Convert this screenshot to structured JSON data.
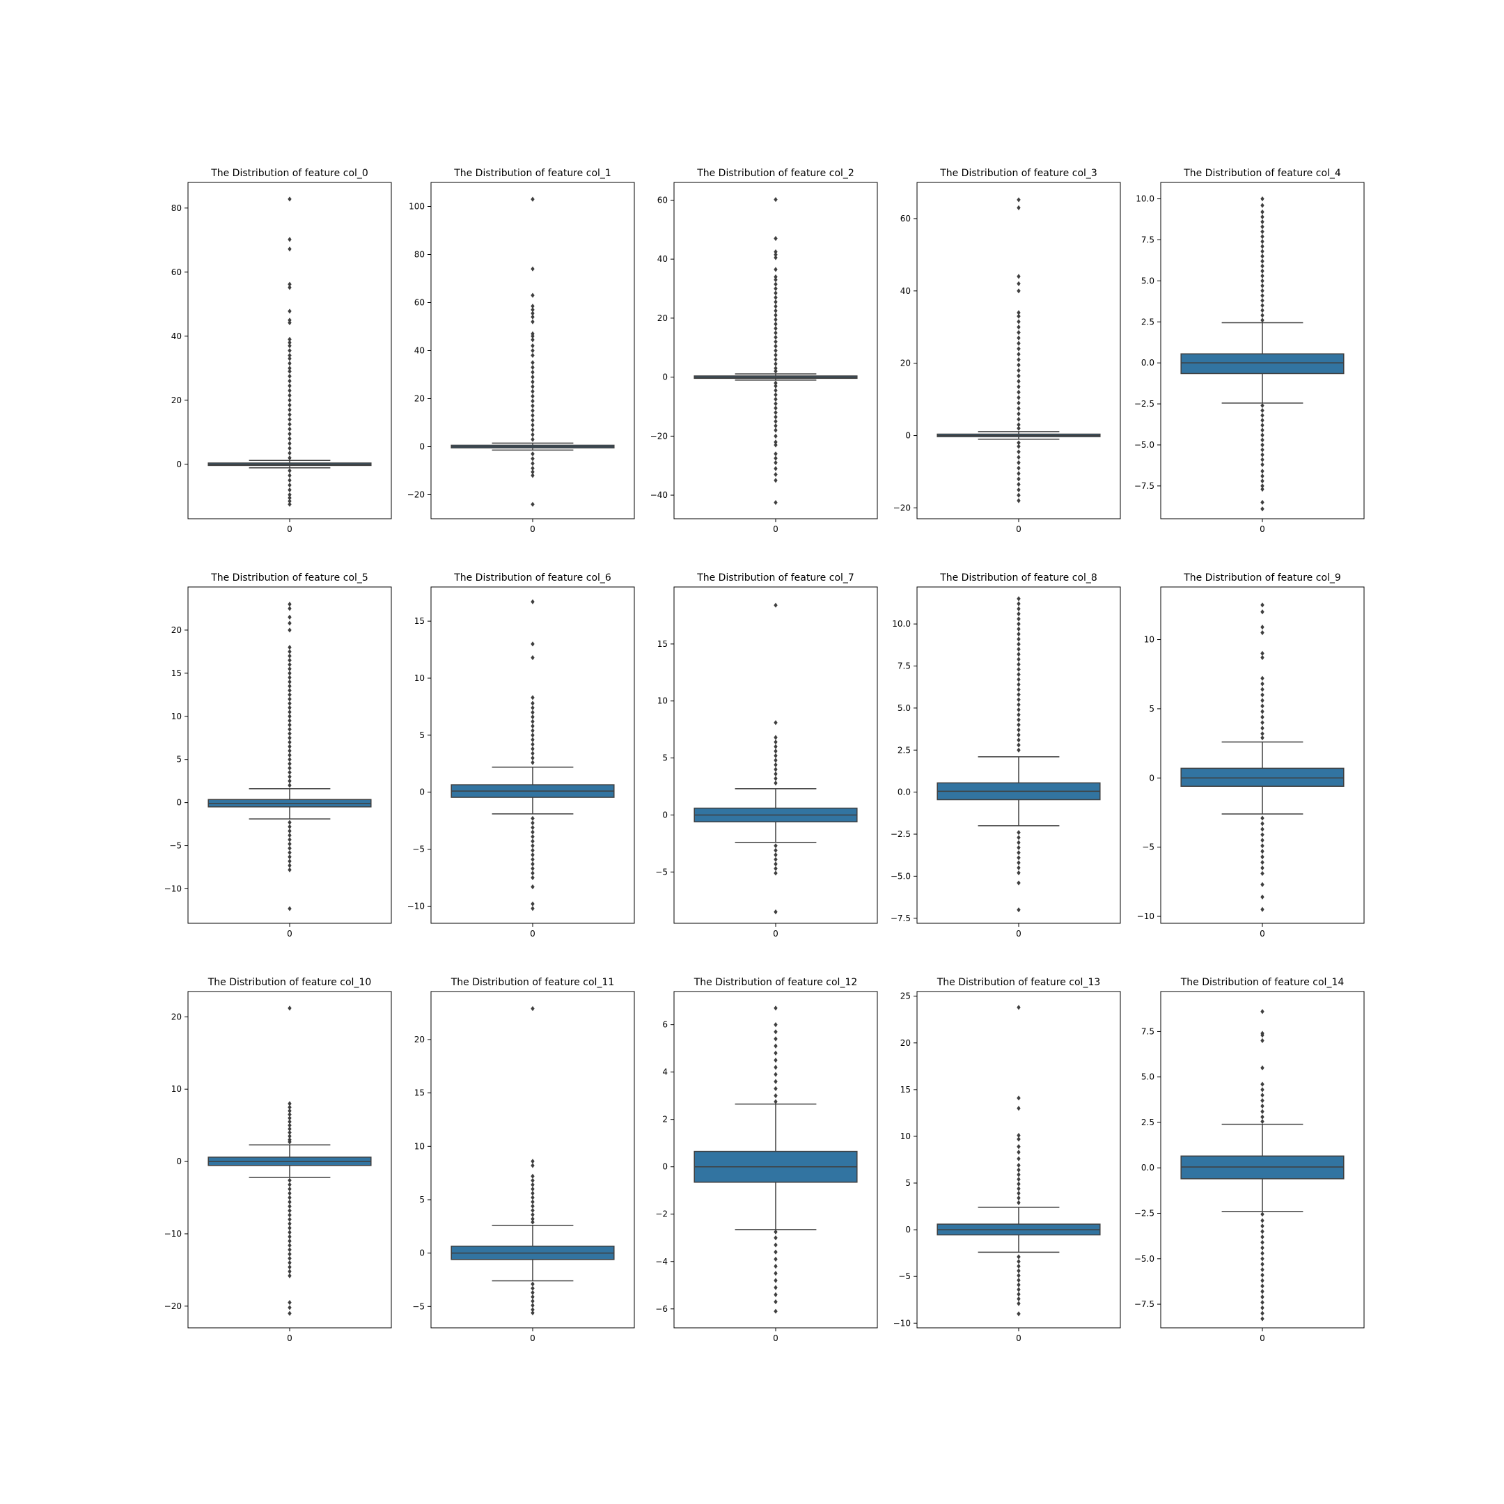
{
  "figure": {
    "background": "#ffffff"
  },
  "style": {
    "box_color": "#3274a1",
    "line_color": "#3f3f3f"
  },
  "chart_data": [
    {
      "type": "box",
      "title": "The Distribution of feature col_0",
      "x_ticks": [
        "0"
      ],
      "ylim": [
        -17,
        88
      ],
      "yticks": [
        0,
        20,
        40,
        60,
        80
      ],
      "box": {
        "q1": -0.35,
        "median": 0.0,
        "q3": 0.4,
        "whisker_low": -1.1,
        "whisker_high": 1.2
      },
      "outliers": [
        82.8,
        70.2,
        67.2,
        56.2,
        55.2,
        47.8,
        45.0,
        44.2,
        39.0,
        38.0,
        37.0,
        35.5,
        34.0,
        33.0,
        31.5,
        30.0,
        29.0,
        27.5,
        26.0,
        24.5,
        23.0,
        21.5,
        20.0,
        18.5,
        17.0,
        15.5,
        14.0,
        12.5,
        11.0,
        9.5,
        8.0,
        6.5,
        5.0,
        3.5,
        2.0,
        -2.0,
        -3.5,
        -5.0,
        -6.5,
        -8.0,
        -9.5,
        -10.5,
        -11.5,
        -12.5
      ]
    },
    {
      "type": "box",
      "title": "The Distribution of feature col_1",
      "x_ticks": [
        "0"
      ],
      "ylim": [
        -30,
        110
      ],
      "yticks": [
        -20,
        0,
        20,
        40,
        60,
        80,
        100
      ],
      "box": {
        "q1": -0.5,
        "median": 0.0,
        "q3": 0.6,
        "whisker_low": -1.4,
        "whisker_high": 1.5
      },
      "outliers": [
        103.0,
        74.0,
        63.0,
        58.5,
        57.0,
        55.5,
        54.0,
        52.0,
        47.0,
        46.0,
        44.5,
        42.0,
        40.0,
        38.0,
        35.0,
        33.0,
        31.0,
        29.0,
        27.0,
        25.0,
        23.0,
        21.0,
        19.0,
        17.0,
        15.0,
        13.0,
        11.0,
        9.0,
        7.0,
        5.0,
        3.0,
        -3.0,
        -5.0,
        -7.0,
        -9.0,
        -10.5,
        -12.0,
        -24.0
      ]
    },
    {
      "type": "box",
      "title": "The Distribution of feature col_2",
      "x_ticks": [
        "0"
      ],
      "ylim": [
        -48,
        66
      ],
      "yticks": [
        -40,
        -20,
        0,
        20,
        40,
        60
      ],
      "box": {
        "q1": -0.4,
        "median": 0.0,
        "q3": 0.4,
        "whisker_low": -1.0,
        "whisker_high": 1.1
      },
      "outliers": [
        60.2,
        47.0,
        42.5,
        41.5,
        40.5,
        36.5,
        34.0,
        33.0,
        31.5,
        30.0,
        28.5,
        27.0,
        25.5,
        24.0,
        22.5,
        21.0,
        19.5,
        18.0,
        16.5,
        15.0,
        13.5,
        12.0,
        10.5,
        9.0,
        7.5,
        6.0,
        4.5,
        3.0,
        2.0,
        -2.0,
        -3.0,
        -4.5,
        -6.0,
        -7.5,
        -9.0,
        -10.5,
        -12.0,
        -13.5,
        -15.0,
        -16.5,
        -18.0,
        -20.0,
        -22.0,
        -23.0,
        -26.0,
        -27.5,
        -29.0,
        -31.0,
        -33.0,
        -35.0,
        -42.5
      ]
    },
    {
      "type": "box",
      "title": "The Distribution of feature col_3",
      "x_ticks": [
        "0"
      ],
      "ylim": [
        -23,
        70
      ],
      "yticks": [
        -20,
        0,
        20,
        40,
        60
      ],
      "box": {
        "q1": -0.3,
        "median": 0.0,
        "q3": 0.4,
        "whisker_low": -1.0,
        "whisker_high": 1.1
      },
      "outliers": [
        65.2,
        63.0,
        44.0,
        42.0,
        40.0,
        34.0,
        33.0,
        31.5,
        30.0,
        28.5,
        27.0,
        25.5,
        24.0,
        22.5,
        21.0,
        19.5,
        18.0,
        16.5,
        15.0,
        13.5,
        12.0,
        10.5,
        9.0,
        7.5,
        6.0,
        4.5,
        3.0,
        2.0,
        -2.0,
        -3.0,
        -4.5,
        -6.0,
        -7.5,
        -9.0,
        -10.5,
        -12.0,
        -13.5,
        -15.0,
        -16.5,
        -18.0
      ]
    },
    {
      "type": "box",
      "title": "The Distribution of feature col_4",
      "x_ticks": [
        "0"
      ],
      "ylim": [
        -9.5,
        11.0
      ],
      "yticks": [
        -7.5,
        -5.0,
        -2.5,
        0.0,
        2.5,
        5.0,
        7.5,
        10.0
      ],
      "box": {
        "q1": -0.65,
        "median": 0.0,
        "q3": 0.55,
        "whisker_low": -2.45,
        "whisker_high": 2.45
      },
      "outliers": [
        10.0,
        9.6,
        9.2,
        8.9,
        8.6,
        8.3,
        8.0,
        7.7,
        7.4,
        7.1,
        6.8,
        6.5,
        6.2,
        5.9,
        5.6,
        5.3,
        5.0,
        4.7,
        4.4,
        4.1,
        3.8,
        3.5,
        3.2,
        2.9,
        2.6,
        -2.6,
        -2.9,
        -3.2,
        -3.5,
        -3.8,
        -4.1,
        -4.4,
        -4.7,
        -5.0,
        -5.3,
        -5.6,
        -5.9,
        -6.2,
        -6.6,
        -6.9,
        -7.2,
        -7.5,
        -7.7,
        -8.5,
        -8.9
      ]
    },
    {
      "type": "box",
      "title": "The Distribution of feature col_5",
      "x_ticks": [
        "0"
      ],
      "ylim": [
        -14,
        25
      ],
      "yticks": [
        -10,
        -5,
        0,
        5,
        10,
        15,
        20
      ],
      "box": {
        "q1": -0.5,
        "median": -0.1,
        "q3": 0.35,
        "whisker_low": -1.9,
        "whisker_high": 1.6
      },
      "outliers": [
        23.0,
        22.5,
        21.5,
        20.8,
        20.0,
        18.0,
        17.5,
        17.0,
        16.5,
        16.0,
        15.5,
        15.0,
        14.5,
        14.0,
        13.5,
        13.0,
        12.5,
        12.0,
        11.5,
        11.0,
        10.5,
        10.0,
        9.5,
        9.0,
        8.5,
        8.0,
        7.5,
        7.0,
        6.5,
        6.0,
        5.5,
        5.0,
        4.5,
        4.0,
        3.5,
        3.0,
        2.5,
        2.0,
        -2.3,
        -2.8,
        -3.3,
        -3.8,
        -4.3,
        -4.8,
        -5.3,
        -5.8,
        -6.3,
        -6.8,
        -7.3,
        -7.8,
        -12.3
      ]
    },
    {
      "type": "box",
      "title": "The Distribution of feature col_6",
      "x_ticks": [
        "0"
      ],
      "ylim": [
        -11.5,
        18.0
      ],
      "yticks": [
        -10,
        -5,
        0,
        5,
        10,
        15
      ],
      "box": {
        "q1": -0.45,
        "median": 0.1,
        "q3": 0.65,
        "whisker_low": -1.9,
        "whisker_high": 2.2
      },
      "outliers": [
        16.7,
        13.0,
        11.8,
        8.3,
        7.8,
        7.4,
        7.0,
        6.6,
        6.2,
        5.8,
        5.4,
        5.0,
        4.6,
        4.2,
        3.8,
        3.4,
        3.0,
        2.6,
        -2.3,
        -2.7,
        -3.1,
        -3.5,
        -3.9,
        -4.3,
        -4.7,
        -5.1,
        -5.5,
        -5.9,
        -6.3,
        -6.7,
        -7.1,
        -7.5,
        -8.3,
        -9.8,
        -10.2
      ]
    },
    {
      "type": "box",
      "title": "The Distribution of feature col_7",
      "x_ticks": [
        "0"
      ],
      "ylim": [
        -9.5,
        20.0
      ],
      "yticks": [
        -5,
        0,
        5,
        10,
        15
      ],
      "box": {
        "q1": -0.6,
        "median": 0.0,
        "q3": 0.6,
        "whisker_low": -2.4,
        "whisker_high": 2.3
      },
      "outliers": [
        18.4,
        8.1,
        6.8,
        6.4,
        6.0,
        5.6,
        5.2,
        4.8,
        4.4,
        4.0,
        3.6,
        3.2,
        2.8,
        -2.7,
        -3.1,
        -3.5,
        -3.9,
        -4.3,
        -4.7,
        -5.1,
        -8.5
      ]
    },
    {
      "type": "box",
      "title": "The Distribution of feature col_8",
      "x_ticks": [
        "0"
      ],
      "ylim": [
        -7.8,
        12.2
      ],
      "yticks": [
        -7.5,
        -5.0,
        -2.5,
        0.0,
        2.5,
        5.0,
        7.5,
        10.0
      ],
      "box": {
        "q1": -0.45,
        "median": 0.05,
        "q3": 0.55,
        "whisker_low": -2.0,
        "whisker_high": 2.1
      },
      "outliers": [
        11.5,
        11.2,
        10.9,
        10.6,
        10.3,
        10.0,
        9.7,
        9.4,
        9.1,
        8.8,
        8.5,
        8.2,
        7.9,
        7.6,
        7.3,
        7.0,
        6.7,
        6.4,
        6.1,
        5.8,
        5.5,
        5.2,
        4.9,
        4.6,
        4.3,
        4.0,
        3.7,
        3.4,
        3.1,
        2.8,
        2.5,
        -2.4,
        -2.7,
        -3.0,
        -3.3,
        -3.6,
        -3.9,
        -4.2,
        -4.5,
        -4.8,
        -5.4,
        -7.0
      ]
    },
    {
      "type": "box",
      "title": "The Distribution of feature col_9",
      "x_ticks": [
        "0"
      ],
      "ylim": [
        -10.5,
        13.8
      ],
      "yticks": [
        -10,
        -5,
        0,
        5,
        10
      ],
      "box": {
        "q1": -0.6,
        "median": 0.0,
        "q3": 0.7,
        "whisker_low": -2.6,
        "whisker_high": 2.6
      },
      "outliers": [
        12.5,
        12.0,
        10.9,
        10.5,
        9.0,
        8.7,
        7.2,
        6.8,
        6.4,
        6.0,
        5.6,
        5.2,
        4.8,
        4.4,
        4.0,
        3.6,
        3.2,
        2.9,
        -2.9,
        -3.3,
        -3.7,
        -4.1,
        -4.5,
        -4.9,
        -5.3,
        -5.7,
        -6.1,
        -6.5,
        -6.9,
        -7.7,
        -8.6,
        -9.5
      ]
    },
    {
      "type": "box",
      "title": "The Distribution of feature col_10",
      "x_ticks": [
        "0"
      ],
      "ylim": [
        -23,
        23.5
      ],
      "yticks": [
        -20,
        -10,
        0,
        10,
        20
      ],
      "box": {
        "q1": -0.55,
        "median": 0.0,
        "q3": 0.6,
        "whisker_low": -2.2,
        "whisker_high": 2.3
      },
      "outliers": [
        21.2,
        8.0,
        7.5,
        7.0,
        6.5,
        6.0,
        5.5,
        5.0,
        4.5,
        4.0,
        3.5,
        3.0,
        2.7,
        -2.6,
        -3.2,
        -3.8,
        -4.4,
        -5.0,
        -5.6,
        -6.2,
        -6.8,
        -7.4,
        -8.0,
        -8.6,
        -9.2,
        -9.8,
        -10.4,
        -11.0,
        -11.6,
        -12.2,
        -12.8,
        -13.4,
        -14.0,
        -14.6,
        -15.2,
        -15.8,
        -19.5,
        -20.2,
        -21.0
      ]
    },
    {
      "type": "box",
      "title": "The Distribution of feature col_11",
      "x_ticks": [
        "0"
      ],
      "ylim": [
        -7.0,
        24.5
      ],
      "yticks": [
        -5,
        0,
        5,
        10,
        15,
        20
      ],
      "box": {
        "q1": -0.6,
        "median": 0.0,
        "q3": 0.65,
        "whisker_low": -2.6,
        "whisker_high": 2.6
      },
      "outliers": [
        22.9,
        8.6,
        8.2,
        7.2,
        6.8,
        6.4,
        6.0,
        5.6,
        5.2,
        4.8,
        4.4,
        4.0,
        3.6,
        3.2,
        2.9,
        -2.9,
        -3.3,
        -3.7,
        -4.1,
        -4.5,
        -4.9,
        -5.3,
        -5.6
      ]
    },
    {
      "type": "box",
      "title": "The Distribution of feature col_12",
      "x_ticks": [
        "0"
      ],
      "ylim": [
        -6.8,
        7.4
      ],
      "yticks": [
        -6,
        -4,
        -2,
        0,
        2,
        4,
        6
      ],
      "box": {
        "q1": -0.65,
        "median": 0.0,
        "q3": 0.65,
        "whisker_low": -2.65,
        "whisker_high": 2.65
      },
      "outliers": [
        6.7,
        6.0,
        5.7,
        5.4,
        5.1,
        4.8,
        4.5,
        4.2,
        3.9,
        3.6,
        3.3,
        3.0,
        2.75,
        -2.75,
        -3.0,
        -3.3,
        -3.6,
        -3.9,
        -4.2,
        -4.5,
        -4.8,
        -5.1,
        -5.4,
        -5.7,
        -6.1
      ]
    },
    {
      "type": "box",
      "title": "The Distribution of feature col_13",
      "x_ticks": [
        "0"
      ],
      "ylim": [
        -10.5,
        25.5
      ],
      "yticks": [
        -10,
        -5,
        0,
        5,
        10,
        15,
        20,
        25
      ],
      "box": {
        "q1": -0.55,
        "median": 0.0,
        "q3": 0.6,
        "whisker_low": -2.4,
        "whisker_high": 2.4
      },
      "outliers": [
        23.8,
        14.1,
        13.0,
        10.1,
        9.7,
        8.9,
        8.3,
        7.6,
        6.9,
        6.4,
        5.9,
        5.4,
        4.9,
        4.4,
        3.9,
        3.4,
        2.9,
        -2.9,
        -3.4,
        -3.9,
        -4.4,
        -4.9,
        -5.4,
        -5.9,
        -6.4,
        -6.9,
        -7.4,
        -7.9,
        -9.0
      ]
    },
    {
      "type": "box",
      "title": "The Distribution of feature col_14",
      "x_ticks": [
        "0"
      ],
      "ylim": [
        -8.8,
        9.7
      ],
      "yticks": [
        -7.5,
        -5.0,
        -2.5,
        0.0,
        2.5,
        5.0,
        7.5
      ],
      "box": {
        "q1": -0.6,
        "median": 0.05,
        "q3": 0.65,
        "whisker_low": -2.4,
        "whisker_high": 2.4
      },
      "outliers": [
        8.6,
        7.4,
        7.3,
        7.0,
        5.5,
        4.6,
        4.3,
        4.0,
        3.7,
        3.4,
        3.1,
        2.8,
        2.55,
        -2.55,
        -2.9,
        -3.2,
        -3.5,
        -3.8,
        -4.1,
        -4.4,
        -4.7,
        -5.0,
        -5.3,
        -5.6,
        -5.9,
        -6.2,
        -6.5,
        -6.8,
        -7.1,
        -7.4,
        -7.7,
        -8.0,
        -8.3
      ]
    }
  ]
}
